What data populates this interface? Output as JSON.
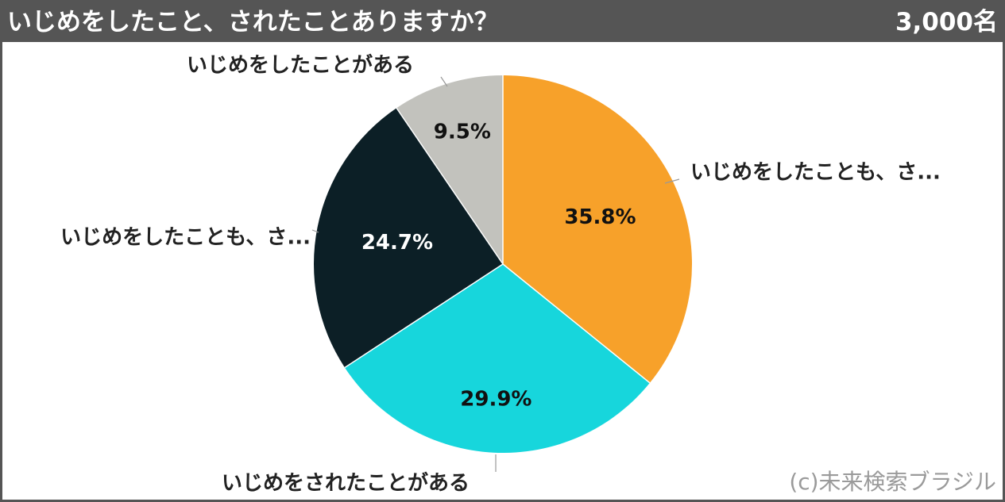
{
  "header": {
    "title": "いじめをしたこと、されたことありますか？",
    "sample_size": "3,000名"
  },
  "credit": "(c)未来検索ブラジル",
  "chart_data": {
    "type": "pie",
    "title": "いじめをしたこと、されたことありますか？",
    "start_angle_deg": 0,
    "direction": "clockwise",
    "slices": [
      {
        "label": "いじめをしたことも、さ...",
        "value": 35.8,
        "value_label": "35.8%",
        "color": "#f7a12a",
        "text_color": "#111111"
      },
      {
        "label": "いじめをされたことがある",
        "value": 29.9,
        "value_label": "29.9%",
        "color": "#17d6dc",
        "text_color": "#111111"
      },
      {
        "label": "いじめをしたことも、さ...",
        "value": 24.7,
        "value_label": "24.7%",
        "color": "#0c1f26",
        "text_color": "#ffffff"
      },
      {
        "label": "いじめをしたことがある",
        "value": 9.5,
        "value_label": "9.5%",
        "color": "#c2c2bd",
        "text_color": "#111111"
      }
    ]
  }
}
